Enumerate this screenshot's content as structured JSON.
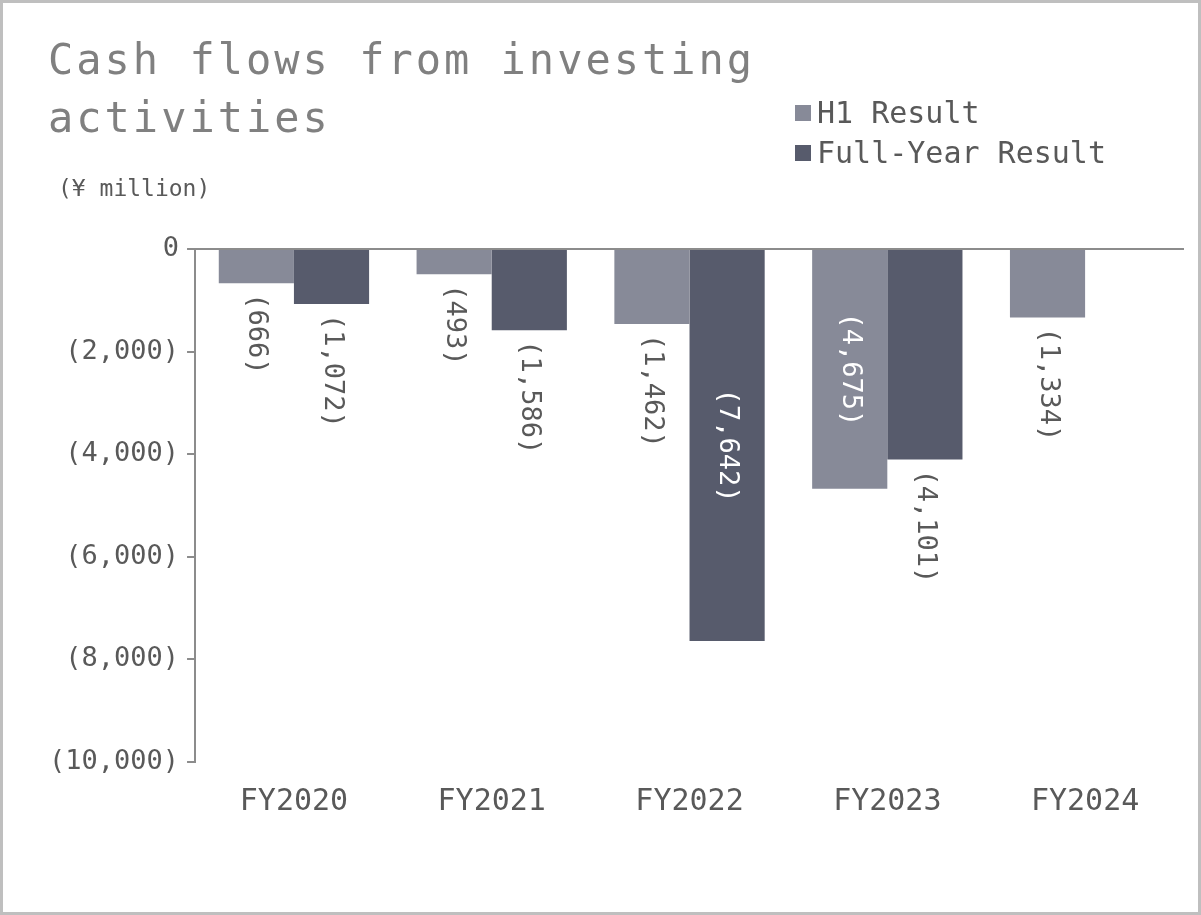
{
  "chart_data": {
    "type": "bar",
    "title": "Cash flows from investing activities",
    "ylabel": "(¥ million)",
    "categories": [
      "FY2020",
      "FY2021",
      "FY2022",
      "FY2023",
      "FY2024"
    ],
    "series": [
      {
        "name": "H1 Result",
        "color": "#878a98",
        "values": [
          -666,
          -493,
          -1462,
          -4675,
          -1334
        ],
        "value_labels": [
          "(666)",
          "(493)",
          "(1,462)",
          "(4,675)",
          "(1,334)"
        ]
      },
      {
        "name": "Full-Year Result",
        "color": "#575b6c",
        "values": [
          -1072,
          -1586,
          -7642,
          -4101,
          null
        ],
        "value_labels": [
          "(1,072)",
          "(1,586)",
          "(7,642)",
          "(4,101)",
          null
        ]
      }
    ],
    "ylim": [
      -10000,
      0
    ],
    "yticks": [
      {
        "value": -10000,
        "label": "(10,000)"
      },
      {
        "value": -8000,
        "label": "(8,000)"
      },
      {
        "value": -6000,
        "label": "(6,000)"
      },
      {
        "value": -4000,
        "label": "(4,000)"
      },
      {
        "value": -2000,
        "label": "(2,000)"
      },
      0
    ],
    "grid": false,
    "legend": "top-right",
    "data_labels": true
  }
}
